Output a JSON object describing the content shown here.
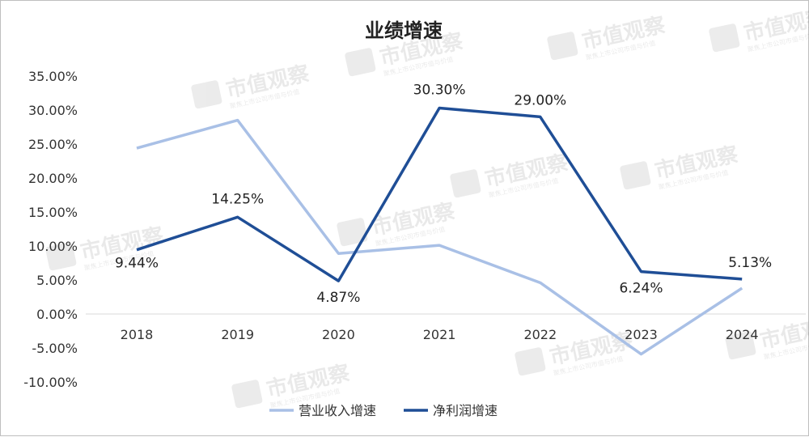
{
  "chart_data": {
    "type": "line",
    "title": "业绩增速",
    "categories": [
      "2018",
      "2019",
      "2020",
      "2021",
      "2022",
      "2023",
      "2024"
    ],
    "ylim": [
      -10,
      35
    ],
    "yticks": [
      "35.00%",
      "30.00%",
      "25.00%",
      "20.00%",
      "15.00%",
      "10.00%",
      "5.00%",
      "0.00%",
      "-5.00%",
      "-10.00%"
    ],
    "grid": false,
    "legend_position": "bottom",
    "series": [
      {
        "name": "营业收入增速",
        "color": "#a9c0e6",
        "values": [
          24.4,
          28.5,
          8.9,
          10.1,
          4.6,
          -5.9,
          3.8
        ],
        "labels": [
          "",
          "",
          "",
          "",
          "",
          "",
          ""
        ]
      },
      {
        "name": "净利润增速",
        "color": "#1f4e96",
        "values": [
          9.44,
          14.25,
          4.87,
          30.3,
          29.0,
          6.24,
          5.13
        ],
        "labels": [
          "9.44%",
          "14.25%",
          "4.87%",
          "30.30%",
          "29.00%",
          "6.24%",
          "5.13%"
        ]
      }
    ]
  },
  "watermark": {
    "text": "市值观察",
    "subtext": "聚焦上市公司市值与价值"
  }
}
